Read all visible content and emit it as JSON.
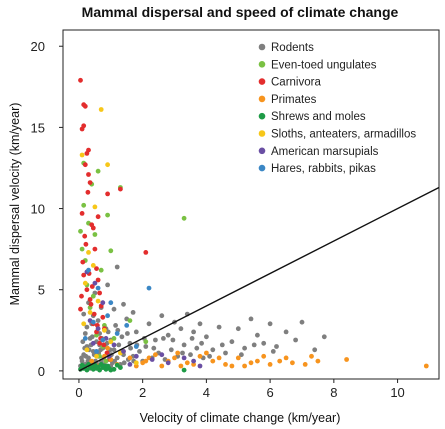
{
  "chart_data": {
    "type": "scatter",
    "title": "Mammal dispersal and speed of climate change",
    "xlabel": "Velocity of climate change (km/year)",
    "ylabel": "Mammal dispersal velocity (km/year)",
    "xlim": [
      -0.5,
      11.3
    ],
    "ylim": [
      -0.5,
      21
    ],
    "xticks": [
      0,
      2,
      4,
      6,
      8,
      10
    ],
    "yticks": [
      0,
      5,
      10,
      15,
      20
    ],
    "grid": false,
    "legend_position": "top-right",
    "reference_line": {
      "from": [
        0,
        0
      ],
      "to": [
        11.3,
        11.3
      ]
    },
    "series": [
      {
        "name": "Rodents",
        "color": "#7f7f7f",
        "points": [
          [
            0.05,
            0.3
          ],
          [
            0.1,
            0.6
          ],
          [
            0.15,
            1.0
          ],
          [
            0.2,
            0.4
          ],
          [
            0.25,
            1.5
          ],
          [
            0.3,
            0.8
          ],
          [
            0.35,
            2.0
          ],
          [
            0.4,
            0.5
          ],
          [
            0.45,
            1.2
          ],
          [
            0.5,
            0.3
          ],
          [
            0.55,
            1.8
          ],
          [
            0.6,
            0.9
          ],
          [
            0.65,
            2.3
          ],
          [
            0.7,
            0.6
          ],
          [
            0.75,
            1.4
          ],
          [
            0.8,
            0.4
          ],
          [
            0.85,
            2.6
          ],
          [
            0.9,
            1.1
          ],
          [
            0.95,
            0.7
          ],
          [
            1.0,
            1.9
          ],
          [
            1.05,
            0.5
          ],
          [
            1.1,
            1.3
          ],
          [
            1.15,
            2.8
          ],
          [
            1.2,
            0.8
          ],
          [
            1.25,
            1.6
          ],
          [
            1.3,
            0.4
          ],
          [
            1.35,
            2.1
          ],
          [
            1.4,
            1.0
          ],
          [
            1.5,
            3.2
          ],
          [
            1.55,
            0.7
          ],
          [
            1.6,
            1.7
          ],
          [
            1.7,
            0.9
          ],
          [
            1.8,
            2.4
          ],
          [
            1.9,
            1.2
          ],
          [
            2.0,
            0.6
          ],
          [
            2.1,
            1.5
          ],
          [
            2.2,
            2.9
          ],
          [
            2.3,
            0.8
          ],
          [
            2.4,
            1.9
          ],
          [
            2.5,
            1.1
          ],
          [
            2.6,
            3.4
          ],
          [
            2.7,
            0.7
          ],
          [
            2.8,
            2.2
          ],
          [
            2.9,
            1.3
          ],
          [
            3.0,
            3.0
          ],
          [
            3.1,
            0.9
          ],
          [
            3.2,
            2.6
          ],
          [
            3.3,
            1.6
          ],
          [
            3.4,
            3.5
          ],
          [
            3.5,
            1.0
          ],
          [
            3.6,
            2.4
          ],
          [
            3.7,
            1.4
          ],
          [
            3.8,
            2.9
          ],
          [
            3.9,
            0.8
          ],
          [
            4.0,
            2.1
          ],
          [
            4.2,
            1.3
          ],
          [
            4.4,
            2.7
          ],
          [
            4.6,
            1.1
          ],
          [
            4.8,
            1.8
          ],
          [
            5.0,
            2.6
          ],
          [
            5.2,
            1.4
          ],
          [
            5.4,
            3.2
          ],
          [
            5.6,
            2.2
          ],
          [
            5.8,
            1.7
          ],
          [
            6.0,
            2.9
          ],
          [
            6.2,
            1.5
          ],
          [
            6.5,
            2.4
          ],
          [
            6.8,
            1.9
          ],
          [
            7.0,
            3.0
          ],
          [
            7.4,
            1.3
          ],
          [
            7.7,
            2.1
          ],
          [
            0.15,
            3.5
          ],
          [
            0.3,
            4.2
          ],
          [
            0.5,
            4.8
          ],
          [
            0.7,
            3.9
          ],
          [
            0.9,
            5.3
          ],
          [
            1.2,
            6.4
          ],
          [
            1.4,
            4.1
          ],
          [
            1.7,
            3.6
          ],
          [
            0.4,
            2.9
          ],
          [
            0.2,
            2.3
          ],
          [
            0.6,
            3.1
          ],
          [
            0.8,
            0.2
          ],
          [
            1.0,
            0.3
          ],
          [
            1.1,
            3.8
          ],
          [
            0.35,
            0.15
          ],
          [
            0.55,
            0.2
          ],
          [
            0.25,
            2.7
          ],
          [
            0.45,
            3.4
          ],
          [
            0.65,
            1.6
          ],
          [
            0.12,
            1.8
          ],
          [
            0.22,
            0.9
          ],
          [
            0.32,
            1.3
          ],
          [
            0.42,
            2.1
          ],
          [
            0.52,
            0.6
          ],
          [
            0.62,
            1.1
          ],
          [
            0.72,
            2.0
          ],
          [
            0.82,
            1.5
          ],
          [
            0.92,
            2.4
          ],
          [
            1.02,
            1.0
          ],
          [
            1.12,
            0.6
          ],
          [
            1.22,
            2.5
          ],
          [
            1.32,
            1.2
          ],
          [
            1.42,
            0.5
          ],
          [
            1.52,
            2.3
          ],
          [
            1.62,
            1.4
          ],
          [
            1.72,
            0.6
          ],
          [
            1.82,
            1.6
          ],
          [
            2.05,
            2.0
          ],
          [
            2.35,
            1.4
          ],
          [
            2.65,
            2.0
          ],
          [
            2.95,
            1.9
          ],
          [
            3.25,
            1.1
          ],
          [
            3.55,
            2.0
          ],
          [
            3.85,
            1.7
          ],
          [
            4.1,
            0.9
          ],
          [
            4.5,
            1.6
          ],
          [
            5.1,
            1.0
          ],
          [
            5.5,
            1.6
          ],
          [
            6.1,
            1.2
          ],
          [
            0.08,
            0.8
          ],
          [
            0.18,
            1.4
          ],
          [
            0.28,
            0.6
          ],
          [
            0.38,
            1.6
          ],
          [
            0.48,
            1.0
          ],
          [
            0.58,
            0.4
          ],
          [
            0.68,
            1.3
          ],
          [
            0.78,
            0.8
          ],
          [
            0.88,
            1.7
          ],
          [
            0.98,
            1.3
          ]
        ]
      },
      {
        "name": "Even-toed ungulates",
        "color": "#7ac143",
        "points": [
          [
            0.05,
            8.6
          ],
          [
            0.1,
            7.5
          ],
          [
            0.15,
            10.2
          ],
          [
            0.2,
            6.8
          ],
          [
            0.3,
            9.1
          ],
          [
            0.4,
            11.5
          ],
          [
            0.5,
            8.4
          ],
          [
            0.6,
            12.3
          ],
          [
            0.7,
            6.2
          ],
          [
            0.9,
            9.6
          ],
          [
            1.0,
            7.4
          ],
          [
            1.3,
            11.3
          ],
          [
            1.6,
            3.1
          ],
          [
            2.1,
            1.8
          ],
          [
            3.3,
            9.4
          ],
          [
            0.25,
            5.3
          ],
          [
            0.45,
            4.6
          ],
          [
            0.35,
            3.9
          ],
          [
            0.55,
            2.2
          ],
          [
            0.75,
            1.5
          ],
          [
            0.15,
            12.8
          ],
          [
            0.8,
            2.8
          ],
          [
            1.1,
            2.0
          ],
          [
            0.65,
            0.9
          ],
          [
            0.85,
            0.6
          ]
        ]
      },
      {
        "name": "Carnivora",
        "color": "#e32d2d",
        "points": [
          [
            0.05,
            17.9
          ],
          [
            0.1,
            14.9
          ],
          [
            0.15,
            16.4
          ],
          [
            0.2,
            16.3
          ],
          [
            0.25,
            13.4
          ],
          [
            0.3,
            12.1
          ],
          [
            0.35,
            11.6
          ],
          [
            0.4,
            9.0
          ],
          [
            0.45,
            8.8
          ],
          [
            0.5,
            7.5
          ],
          [
            0.55,
            6.3
          ],
          [
            0.6,
            5.6
          ],
          [
            0.65,
            4.8
          ],
          [
            0.7,
            4.0
          ],
          [
            0.75,
            3.3
          ],
          [
            0.8,
            2.6
          ],
          [
            0.15,
            15.1
          ],
          [
            0.2,
            12.7
          ],
          [
            0.28,
            11.0
          ],
          [
            0.1,
            9.7
          ],
          [
            0.18,
            8.3
          ],
          [
            0.22,
            7.8
          ],
          [
            0.12,
            6.7
          ],
          [
            0.32,
            6.0
          ],
          [
            0.42,
            5.2
          ],
          [
            0.08,
            4.6
          ],
          [
            0.38,
            4.1
          ],
          [
            0.48,
            3.5
          ],
          [
            0.58,
            2.8
          ],
          [
            0.68,
            2.0
          ],
          [
            0.78,
            1.6
          ],
          [
            0.88,
            1.1
          ],
          [
            0.98,
            0.7
          ],
          [
            0.15,
            5.9
          ],
          [
            0.25,
            5.0
          ],
          [
            0.35,
            4.4
          ],
          [
            0.05,
            3.8
          ],
          [
            0.45,
            2.9
          ],
          [
            0.55,
            2.4
          ],
          [
            0.65,
            1.7
          ],
          [
            0.9,
            10.9
          ],
          [
            1.3,
            11.2
          ],
          [
            2.1,
            7.3
          ],
          [
            0.3,
            13.6
          ],
          [
            0.6,
            9.5
          ]
        ]
      },
      {
        "name": "Primates",
        "color": "#f7941e",
        "points": [
          [
            0.4,
            0.6
          ],
          [
            0.8,
            0.9
          ],
          [
            1.2,
            0.4
          ],
          [
            1.6,
            0.8
          ],
          [
            2.0,
            0.5
          ],
          [
            2.4,
            1.0
          ],
          [
            2.8,
            0.6
          ],
          [
            3.1,
            1.1
          ],
          [
            3.4,
            0.5
          ],
          [
            3.8,
            0.9
          ],
          [
            4.2,
            0.6
          ],
          [
            4.6,
            0.4
          ],
          [
            5.0,
            0.8
          ],
          [
            5.4,
            0.5
          ],
          [
            5.8,
            0.9
          ],
          [
            6.3,
            0.6
          ],
          [
            6.7,
            0.5
          ],
          [
            7.1,
            0.4
          ],
          [
            7.5,
            0.6
          ],
          [
            8.4,
            0.7
          ],
          [
            10.9,
            0.3
          ],
          [
            1.4,
            1.2
          ],
          [
            1.8,
            0.3
          ],
          [
            2.2,
            0.8
          ],
          [
            2.6,
            0.3
          ],
          [
            3.0,
            0.8
          ],
          [
            3.6,
            0.4
          ],
          [
            4.0,
            1.1
          ],
          [
            4.4,
            0.8
          ],
          [
            5.2,
            0.3
          ],
          [
            5.6,
            0.6
          ],
          [
            6.0,
            0.4
          ],
          [
            6.5,
            0.8
          ],
          [
            7.3,
            0.9
          ],
          [
            0.6,
            0.3
          ],
          [
            1.0,
            0.7
          ],
          [
            2.1,
            0.6
          ],
          [
            3.2,
            0.3
          ],
          [
            4.8,
            0.3
          ],
          [
            0.9,
            1.4
          ]
        ]
      },
      {
        "name": "Shrews and moles",
        "color": "#1e9b46",
        "points": [
          [
            0.05,
            0.1
          ],
          [
            0.15,
            0.15
          ],
          [
            0.25,
            0.05
          ],
          [
            0.35,
            0.2
          ],
          [
            0.45,
            0.1
          ],
          [
            0.55,
            0.15
          ],
          [
            0.65,
            0.05
          ],
          [
            0.75,
            0.2
          ],
          [
            0.85,
            0.1
          ],
          [
            0.95,
            0.15
          ],
          [
            1.1,
            0.1
          ],
          [
            1.3,
            0.2
          ],
          [
            0.1,
            0.35
          ],
          [
            0.2,
            0.25
          ],
          [
            0.3,
            0.4
          ],
          [
            0.4,
            0.3
          ],
          [
            0.5,
            0.35
          ],
          [
            0.6,
            0.25
          ],
          [
            0.7,
            0.4
          ],
          [
            0.8,
            0.3
          ],
          [
            3.3,
            0.05
          ],
          [
            0.9,
            0.3
          ],
          [
            1.0,
            0.05
          ],
          [
            1.2,
            0.35
          ]
        ]
      },
      {
        "name": "Sloths, anteaters, armadillos",
        "color": "#f7c719",
        "points": [
          [
            0.7,
            16.1
          ],
          [
            0.9,
            12.7
          ],
          [
            0.5,
            10.1
          ],
          [
            0.3,
            7.3
          ],
          [
            0.45,
            6.5
          ],
          [
            0.2,
            5.4
          ],
          [
            0.6,
            4.3
          ],
          [
            0.35,
            3.6
          ],
          [
            0.8,
            2.5
          ],
          [
            1.0,
            1.8
          ],
          [
            1.3,
            1.1
          ],
          [
            0.15,
            2.9
          ],
          [
            0.55,
            0.9
          ],
          [
            0.25,
            1.3
          ],
          [
            1.8,
            0.5
          ],
          [
            0.1,
            13.3
          ]
        ]
      },
      {
        "name": "American marsupials",
        "color": "#6a4fa3",
        "points": [
          [
            0.25,
            6.1
          ],
          [
            0.5,
            5.4
          ],
          [
            0.75,
            4.2
          ],
          [
            0.35,
            3.1
          ],
          [
            0.6,
            2.6
          ],
          [
            0.85,
            2.0
          ],
          [
            1.1,
            1.6
          ],
          [
            1.4,
            1.2
          ],
          [
            1.8,
            0.9
          ],
          [
            2.3,
            0.7
          ],
          [
            2.8,
            0.5
          ],
          [
            3.3,
            0.8
          ],
          [
            3.8,
            0.3
          ],
          [
            0.45,
            1.7
          ],
          [
            0.95,
            0.9
          ],
          [
            1.6,
            0.4
          ],
          [
            2.6,
            1.0
          ],
          [
            3.6,
            0.6
          ]
        ]
      },
      {
        "name": "Hares, rabbits, pikas",
        "color": "#3b87c5",
        "points": [
          [
            0.3,
            6.2
          ],
          [
            0.6,
            5.1
          ],
          [
            0.9,
            3.4
          ],
          [
            1.2,
            2.3
          ],
          [
            2.2,
            5.1
          ],
          [
            1.5,
            2.8
          ],
          [
            0.45,
            3.0
          ],
          [
            0.75,
            1.9
          ],
          [
            1.8,
            1.5
          ],
          [
            1.0,
            4.2
          ],
          [
            0.2,
            2.0
          ],
          [
            0.55,
            1.2
          ]
        ]
      }
    ]
  }
}
